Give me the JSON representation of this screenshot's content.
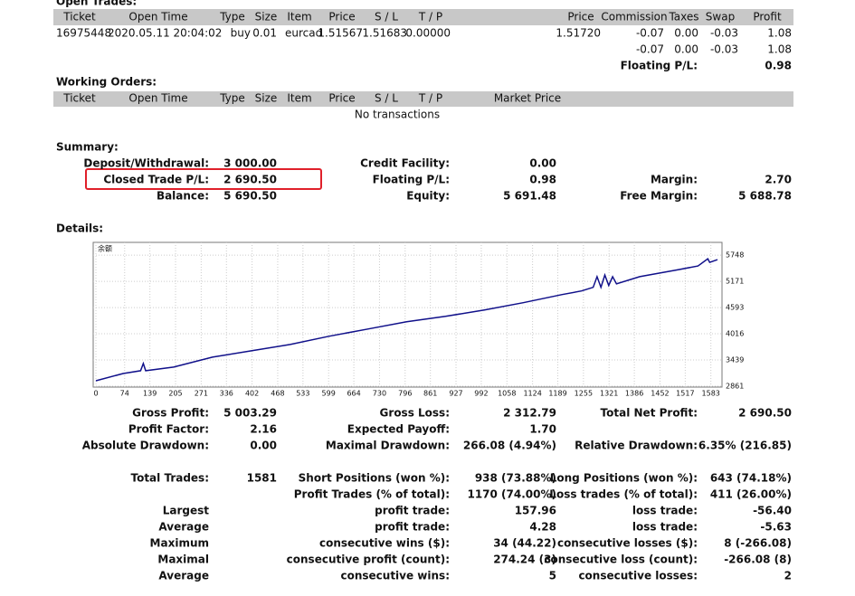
{
  "open_trades": {
    "title": "Open Trades:",
    "headers": [
      "Ticket",
      "Open Time",
      "Type",
      "Size",
      "Item",
      "Price",
      "S / L",
      "T / P",
      "Price",
      "Commission",
      "Taxes",
      "Swap",
      "Profit"
    ],
    "rows": [
      [
        "16975448",
        "2020.05.11 20:04:02",
        "buy",
        "0.01",
        "eurcad",
        "1.51567",
        "1.51683",
        "0.00000",
        "1.51720",
        "-0.07",
        "0.00",
        "-0.03",
        "1.08"
      ],
      [
        null,
        null,
        null,
        null,
        null,
        null,
        null,
        null,
        null,
        "-0.07",
        "0.00",
        "-0.03",
        "1.08"
      ]
    ],
    "floating_label": "Floating P/L:",
    "floating_value": "0.98"
  },
  "working_orders": {
    "title": "Working Orders:",
    "headers": [
      "Ticket",
      "Open Time",
      "Type",
      "Size",
      "Item",
      "Price",
      "S / L",
      "T / P",
      "Market Price"
    ],
    "empty": "No transactions"
  },
  "summary": {
    "title": "Summary:",
    "rows": [
      [
        [
          "Deposit/Withdrawal:",
          "3 000.00"
        ],
        [
          "Credit Facility:",
          "0.00"
        ],
        null
      ],
      [
        [
          "Closed Trade P/L:",
          "2 690.50"
        ],
        [
          "Floating P/L:",
          "0.98"
        ],
        [
          "Margin:",
          "2.70"
        ]
      ],
      [
        [
          "Balance:",
          "5 690.50"
        ],
        [
          "Equity:",
          "5 691.48"
        ],
        [
          "Free Margin:",
          "5 688.78"
        ]
      ]
    ]
  },
  "details": {
    "title": "Details:",
    "rows": [
      [
        [
          "Gross Profit:",
          "5 003.29"
        ],
        [
          "Gross Loss:",
          "2 312.79"
        ],
        [
          "Total Net Profit:",
          "2 690.50"
        ]
      ],
      [
        [
          "Profit Factor:",
          "2.16"
        ],
        [
          "Expected Payoff:",
          "1.70"
        ],
        null
      ],
      [
        [
          "Absolute Drawdown:",
          "0.00"
        ],
        [
          "Maximal Drawdown:",
          "266.08 (4.94%)"
        ],
        [
          "Relative Drawdown:",
          "6.35% (216.85)"
        ]
      ],
      [
        [
          "Total Trades:",
          "1581"
        ],
        [
          "Short Positions (won %):",
          "938 (73.88%)"
        ],
        [
          "Long Positions (won %):",
          "643 (74.18%)"
        ]
      ],
      [
        null,
        [
          "Profit Trades (% of total):",
          "1170 (74.00%)"
        ],
        [
          "Loss trades (% of total):",
          "411 (26.00%)"
        ]
      ],
      [
        [
          "Largest",
          null
        ],
        [
          "profit trade:",
          "157.96"
        ],
        [
          "loss trade:",
          "-56.40"
        ]
      ],
      [
        [
          "Average",
          null
        ],
        [
          "profit trade:",
          "4.28"
        ],
        [
          "loss trade:",
          "-5.63"
        ]
      ],
      [
        [
          "Maximum",
          null
        ],
        [
          "consecutive wins ($):",
          "34 (44.22)"
        ],
        [
          "consecutive losses ($):",
          "8 (-266.08)"
        ]
      ],
      [
        [
          "Maximal",
          null
        ],
        [
          "consecutive profit (count):",
          "274.24 (3)"
        ],
        [
          "consecutive loss (count):",
          "-266.08 (8)"
        ]
      ],
      [
        [
          "Average",
          null
        ],
        [
          "consecutive wins:",
          "5"
        ],
        [
          "consecutive losses:",
          "2"
        ]
      ]
    ]
  },
  "chart_data": {
    "type": "line",
    "ylabel": "余额",
    "x": [
      0,
      70,
      115,
      122,
      128,
      200,
      300,
      400,
      500,
      600,
      700,
      800,
      900,
      1000,
      1100,
      1200,
      1250,
      1280,
      1290,
      1300,
      1310,
      1320,
      1330,
      1340,
      1400,
      1500,
      1550,
      1575,
      1580,
      1600
    ],
    "series": [
      {
        "color": "#10108a",
        "values": [
          2980,
          3140,
          3200,
          3360,
          3200,
          3280,
          3500,
          3640,
          3780,
          3960,
          4120,
          4280,
          4400,
          4540,
          4700,
          4880,
          4960,
          5040,
          5275,
          5040,
          5310,
          5080,
          5275,
          5115,
          5275,
          5430,
          5510,
          5670,
          5590,
          5650
        ]
      }
    ],
    "xlim": [
      0,
      1600
    ],
    "ylim": [
      2840,
      6030
    ],
    "xticks": [
      0,
      74,
      139,
      205,
      271,
      336,
      402,
      468,
      533,
      599,
      664,
      730,
      796,
      861,
      927,
      992,
      1058,
      1124,
      1189,
      1255,
      1321,
      1386,
      1452,
      1517,
      1583
    ],
    "yticks": [
      2861,
      3439,
      4016,
      4593,
      5171,
      5748
    ],
    "grid": true
  }
}
